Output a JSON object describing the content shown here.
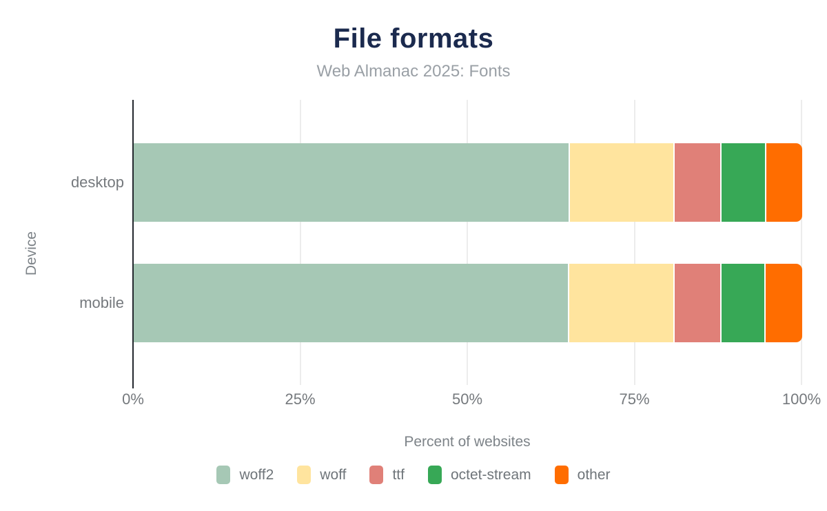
{
  "header": {
    "title": "File formats",
    "subtitle": "Web Almanac 2025: Fonts"
  },
  "chart_data": {
    "type": "bar",
    "orientation": "horizontal",
    "stacked": true,
    "title": "File formats",
    "subtitle": "Web Almanac 2025: Fonts",
    "xlabel": "Percent of websites",
    "ylabel": "Device",
    "categories": [
      "desktop",
      "mobile"
    ],
    "series": [
      {
        "name": "woff2",
        "color": "#a6c8b5",
        "values": [
          65.3,
          65.2
        ]
      },
      {
        "name": "woff",
        "color": "#ffe49e",
        "values": [
          15.6,
          15.7
        ]
      },
      {
        "name": "ttf",
        "color": "#e08078",
        "values": [
          7.0,
          7.0
        ]
      },
      {
        "name": "octet-stream",
        "color": "#37a856",
        "values": [
          6.7,
          6.6
        ]
      },
      {
        "name": "other",
        "color": "#ff6d00",
        "values": [
          5.4,
          5.5
        ]
      }
    ],
    "xlim": [
      0,
      100
    ],
    "x_ticks": [
      "0%",
      "25%",
      "50%",
      "75%",
      "100%"
    ],
    "x_tick_values": [
      0,
      25,
      50,
      75,
      100
    ],
    "grid": "vertical",
    "legend_position": "bottom"
  },
  "palette": {
    "title_text": "#1b2a4e",
    "subtitle_text": "#9aa0a6",
    "axis_text": "#75797d",
    "axis_line": "#23272d",
    "gridline": "#ececec",
    "background": "#ffffff"
  }
}
